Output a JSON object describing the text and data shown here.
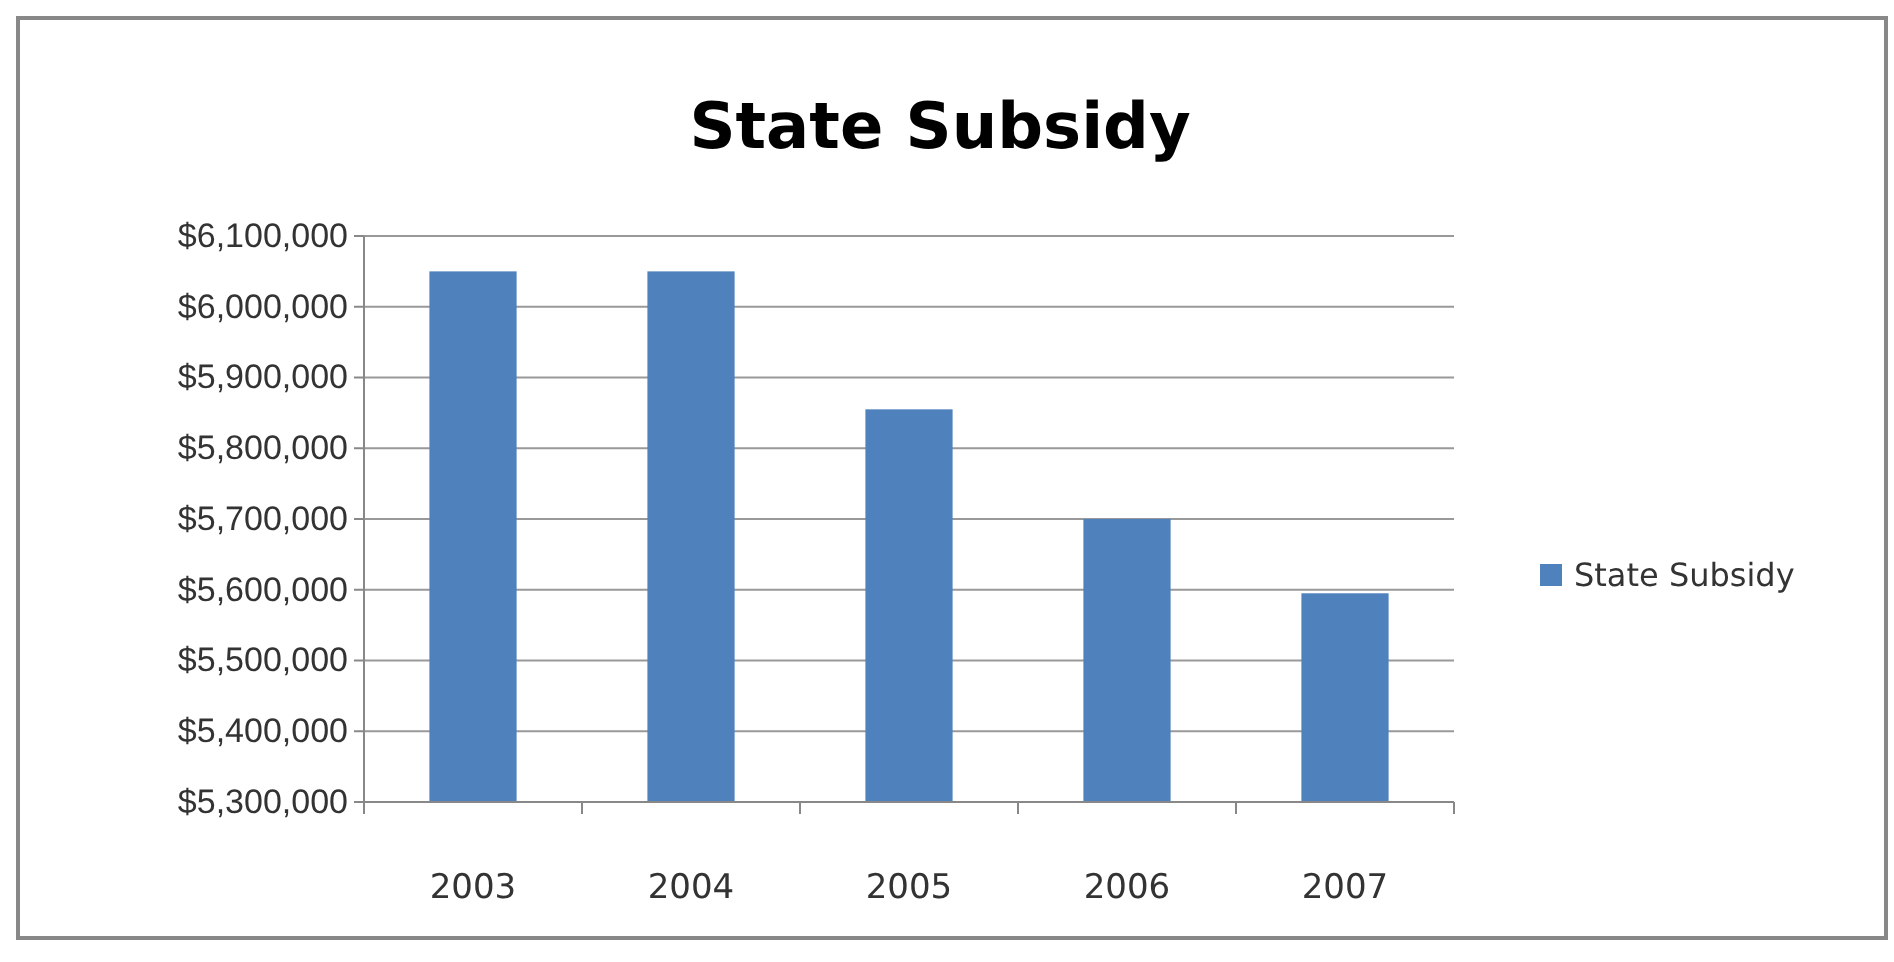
{
  "chart_data": {
    "type": "bar",
    "title": "State Subsidy",
    "categories": [
      "2003",
      "2004",
      "2005",
      "2006",
      "2007"
    ],
    "series": [
      {
        "name": "State Subsidy",
        "color": "#4f81bd",
        "values": [
          6050000,
          6050000,
          5855000,
          5700000,
          5595000
        ]
      }
    ],
    "ylim": [
      5300000,
      6100000
    ],
    "yticks": [
      {
        "value": 5300000,
        "label": "$5,300,000"
      },
      {
        "value": 5400000,
        "label": "$5,400,000"
      },
      {
        "value": 5500000,
        "label": "$5,500,000"
      },
      {
        "value": 5600000,
        "label": "$5,600,000"
      },
      {
        "value": 5700000,
        "label": "$5,700,000"
      },
      {
        "value": 5800000,
        "label": "$5,800,000"
      },
      {
        "value": 5900000,
        "label": "$5,900,000"
      },
      {
        "value": 6000000,
        "label": "$6,000,000"
      },
      {
        "value": 6100000,
        "label": "$6,100,000"
      }
    ],
    "grid": "y",
    "legend": "right"
  }
}
